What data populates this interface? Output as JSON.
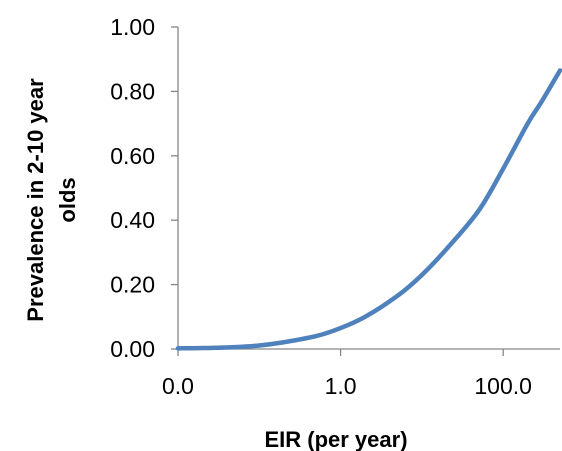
{
  "chart_data": {
    "type": "line",
    "title": "",
    "xlabel": "EIR (per year)",
    "ylabel_lines": [
      "Prevalence in 2-10 year",
      "olds"
    ],
    "x_scale": "log",
    "xlim": [
      0.01,
      500
    ],
    "ylim": [
      0,
      1
    ],
    "x_ticks": [
      0.01,
      1,
      100
    ],
    "x_tick_labels": [
      "0.0",
      "1.0",
      "100.0"
    ],
    "y_ticks": [
      0,
      0.2,
      0.4,
      0.6,
      0.8,
      1.0
    ],
    "y_tick_labels": [
      "0.00",
      "0.20",
      "0.40",
      "0.60",
      "0.80",
      "1.00"
    ],
    "grid": false,
    "legend": "none",
    "series": [
      {
        "color": "#4f81bd",
        "x": [
          0.01,
          0.02,
          0.05,
          0.1,
          0.2,
          0.5,
          1,
          2,
          5,
          10,
          20,
          50,
          100,
          200,
          300,
          500
        ],
        "y": [
          0.002,
          0.003,
          0.006,
          0.011,
          0.021,
          0.04,
          0.065,
          0.1,
          0.165,
          0.23,
          0.31,
          0.43,
          0.56,
          0.7,
          0.77,
          0.865
        ]
      }
    ]
  }
}
